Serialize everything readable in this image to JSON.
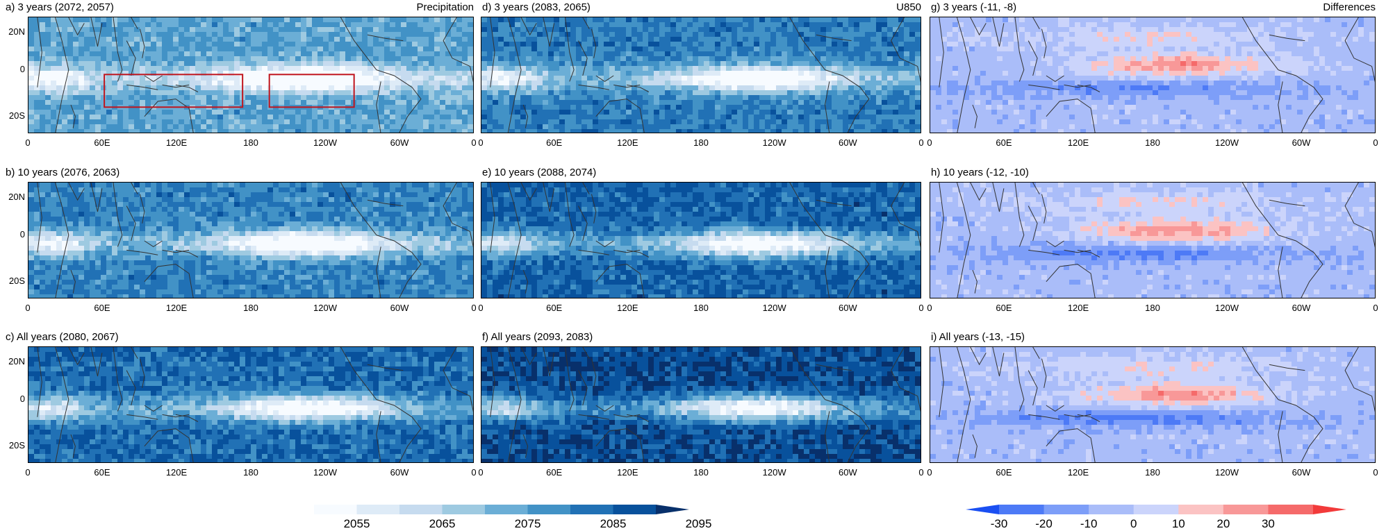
{
  "panels": [
    {
      "title": "a) 3 years (2072, 2057)",
      "header": "Precipitation",
      "col": 0,
      "row": 0,
      "theme": "blue",
      "intensity": 0.55
    },
    {
      "title": "b) 10 years (2076, 2063)",
      "header": "",
      "col": 0,
      "row": 1,
      "theme": "blue",
      "intensity": 0.68
    },
    {
      "title": "c) All years (2080, 2067)",
      "header": "",
      "col": 0,
      "row": 2,
      "theme": "blue",
      "intensity": 0.78
    },
    {
      "title": "d) 3 years (2083, 2065)",
      "header": "U850",
      "col": 1,
      "row": 0,
      "theme": "blue",
      "intensity": 0.7
    },
    {
      "title": "e) 10 years (2088, 2074)",
      "header": "",
      "col": 1,
      "row": 1,
      "theme": "blue",
      "intensity": 0.8
    },
    {
      "title": "f) All years (2093, 2083)",
      "header": "",
      "col": 1,
      "row": 2,
      "theme": "blue",
      "intensity": 0.9
    },
    {
      "title": "g) 3 years (-11, -8)",
      "header": "Differences",
      "col": 2,
      "row": 0,
      "theme": "diff",
      "intensity": 0.5
    },
    {
      "title": "h) 10 years (-12, -10)",
      "header": "",
      "col": 2,
      "row": 1,
      "theme": "diff",
      "intensity": 0.55
    },
    {
      "title": "i) All years (-13, -15)",
      "header": "",
      "col": 2,
      "row": 2,
      "theme": "diff",
      "intensity": 0.6
    }
  ],
  "lat_labels": [
    "20N",
    "0",
    "20S"
  ],
  "lon_labels": [
    "0",
    "60E",
    "120E",
    "180",
    "120W",
    "60W",
    "0"
  ],
  "colorbar_left": {
    "labels": [
      "2055",
      "2065",
      "2075",
      "2085",
      "2095"
    ],
    "colors": [
      "#f7fbff",
      "#deebf7",
      "#c6dbef",
      "#9ecae1",
      "#6baed6",
      "#4292c6",
      "#2171b5",
      "#08519c",
      "#08306b"
    ]
  },
  "colorbar_right": {
    "labels": [
      "-30",
      "-20",
      "-10",
      "0",
      "10",
      "20",
      "30"
    ],
    "colors": [
      "#1a4ff2",
      "#4d7af6",
      "#7d9ef8",
      "#aabdf9",
      "#cbd4fb",
      "#fbc3c3",
      "#f89898",
      "#f56a6a",
      "#f23a3a"
    ]
  },
  "colors": {
    "box_outline": "#c0141c",
    "coast": "#333333"
  }
}
